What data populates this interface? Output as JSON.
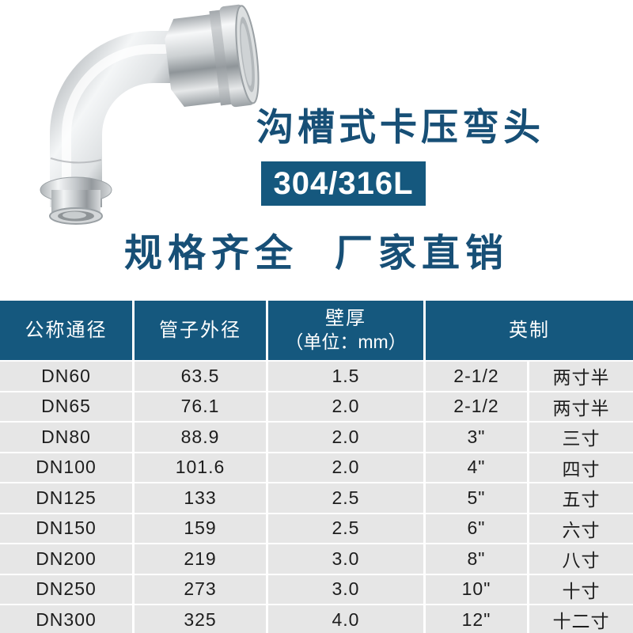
{
  "hero": {
    "title": "沟槽式卡压弯头",
    "badge": "304/316L",
    "photo_name": "stainless-steel-grooved-press-elbow"
  },
  "slogan": {
    "left": "规格齐全",
    "right": "厂家直销"
  },
  "colors": {
    "brand_blue": "#15587e",
    "title_blue": "#174f76",
    "row_gray": "#e6e6e6",
    "body_text": "#1d1d1d"
  },
  "table": {
    "headers": {
      "nominal_diameter": "公称通径",
      "pipe_outer_diameter": "管子外径",
      "wall_thickness_line1": "壁厚",
      "wall_thickness_line2": "（单位：mm）",
      "imperial": "英制"
    },
    "rows": [
      {
        "dn": "DN60",
        "od": "63.5",
        "wall": "1.5",
        "imperial": "2-1/2",
        "imperial_cn": "两寸半"
      },
      {
        "dn": "DN65",
        "od": "76.1",
        "wall": "2.0",
        "imperial": "2-1/2",
        "imperial_cn": "两寸半"
      },
      {
        "dn": "DN80",
        "od": "88.9",
        "wall": "2.0",
        "imperial": "3\"",
        "imperial_cn": "三寸"
      },
      {
        "dn": "DN100",
        "od": "101.6",
        "wall": "2.0",
        "imperial": "4\"",
        "imperial_cn": "四寸"
      },
      {
        "dn": "DN125",
        "od": "133",
        "wall": "2.5",
        "imperial": "5\"",
        "imperial_cn": "五寸"
      },
      {
        "dn": "DN150",
        "od": "159",
        "wall": "2.5",
        "imperial": "6\"",
        "imperial_cn": "六寸"
      },
      {
        "dn": "DN200",
        "od": "219",
        "wall": "3.0",
        "imperial": "8\"",
        "imperial_cn": "八寸"
      },
      {
        "dn": "DN250",
        "od": "273",
        "wall": "3.0",
        "imperial": "10\"",
        "imperial_cn": "十寸"
      },
      {
        "dn": "DN300",
        "od": "325",
        "wall": "4.0",
        "imperial": "12\"",
        "imperial_cn": "十二寸"
      }
    ]
  }
}
